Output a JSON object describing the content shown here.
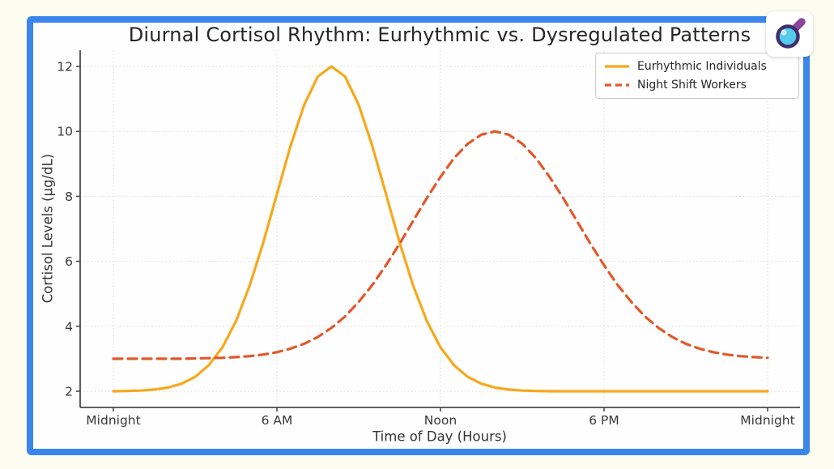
{
  "frame": {
    "border_color": "#3a86ea",
    "outer_background": "#fcfcf1",
    "plot_background": "#fefefe"
  },
  "logo": {
    "name": "magnifier-logo",
    "lens_color": "#55cbea",
    "highlight_color": "#c9f0fa",
    "ring_color": "#3e2f6e",
    "handle_color": "#8a4499"
  },
  "chart_data": {
    "type": "line",
    "title": "Diurnal Cortisol Rhythm: Eurhythmic vs. Dysregulated Patterns",
    "xlabel": "Time of Day (Hours)",
    "ylabel": "Cortisol Levels (µg/dL)",
    "x_range_hours": [
      0,
      24
    ],
    "ylim": [
      1.5,
      12.5
    ],
    "y_ticks": [
      2,
      4,
      6,
      8,
      10,
      12
    ],
    "x_ticks_hours": [
      0,
      6,
      12,
      18,
      24
    ],
    "x_tick_labels": [
      "Midnight",
      "6 AM",
      "Noon",
      "6 PM",
      "Midnight"
    ],
    "grid": true,
    "grid_style": "dotted",
    "legend_position": "upper right",
    "x_hours": [
      0,
      0.5,
      1,
      1.5,
      2,
      2.5,
      3,
      3.5,
      4,
      4.5,
      5,
      5.5,
      6,
      6.5,
      7,
      7.5,
      8,
      8.5,
      9,
      9.5,
      10,
      10.5,
      11,
      11.5,
      12,
      12.5,
      13,
      13.5,
      14,
      14.5,
      15,
      15.5,
      16,
      16.5,
      17,
      17.5,
      18,
      18.5,
      19,
      19.5,
      20,
      20.5,
      21,
      21.5,
      22,
      22.5,
      23,
      23.5,
      24
    ],
    "series": [
      {
        "name": "Eurhythmic Individuals",
        "color": "#f7a81b",
        "style": "solid",
        "peak": {
          "hour": 8,
          "value": 12
        },
        "baseline": 2,
        "values": [
          2.0,
          2.01,
          2.02,
          2.05,
          2.11,
          2.23,
          2.44,
          2.8,
          3.35,
          4.16,
          5.25,
          6.58,
          8.07,
          9.55,
          10.82,
          11.69,
          12.0,
          11.69,
          10.82,
          9.55,
          8.07,
          6.58,
          5.25,
          4.16,
          3.35,
          2.8,
          2.44,
          2.23,
          2.11,
          2.05,
          2.02,
          2.01,
          2.0,
          2.0,
          2.0,
          2.0,
          2.0,
          2.0,
          2.0,
          2.0,
          2.0,
          2.0,
          2.0,
          2.0,
          2.0,
          2.0,
          2.0,
          2.0,
          2.0
        ]
      },
      {
        "name": "Night Shift Workers",
        "color": "#e1582a",
        "style": "dashed",
        "peak": {
          "hour": 14,
          "value": 10
        },
        "baseline": 3,
        "values": [
          3.0,
          3.0,
          3.0,
          3.0,
          3.0,
          3.0,
          3.01,
          3.02,
          3.03,
          3.05,
          3.08,
          3.13,
          3.2,
          3.31,
          3.46,
          3.67,
          3.95,
          4.3,
          4.75,
          5.27,
          5.88,
          6.54,
          7.25,
          7.95,
          8.6,
          9.18,
          9.62,
          9.9,
          10.0,
          9.9,
          9.62,
          9.18,
          8.6,
          7.95,
          7.25,
          6.54,
          5.88,
          5.27,
          4.75,
          4.3,
          3.95,
          3.67,
          3.46,
          3.31,
          3.2,
          3.13,
          3.08,
          3.05,
          3.03
        ]
      }
    ]
  }
}
